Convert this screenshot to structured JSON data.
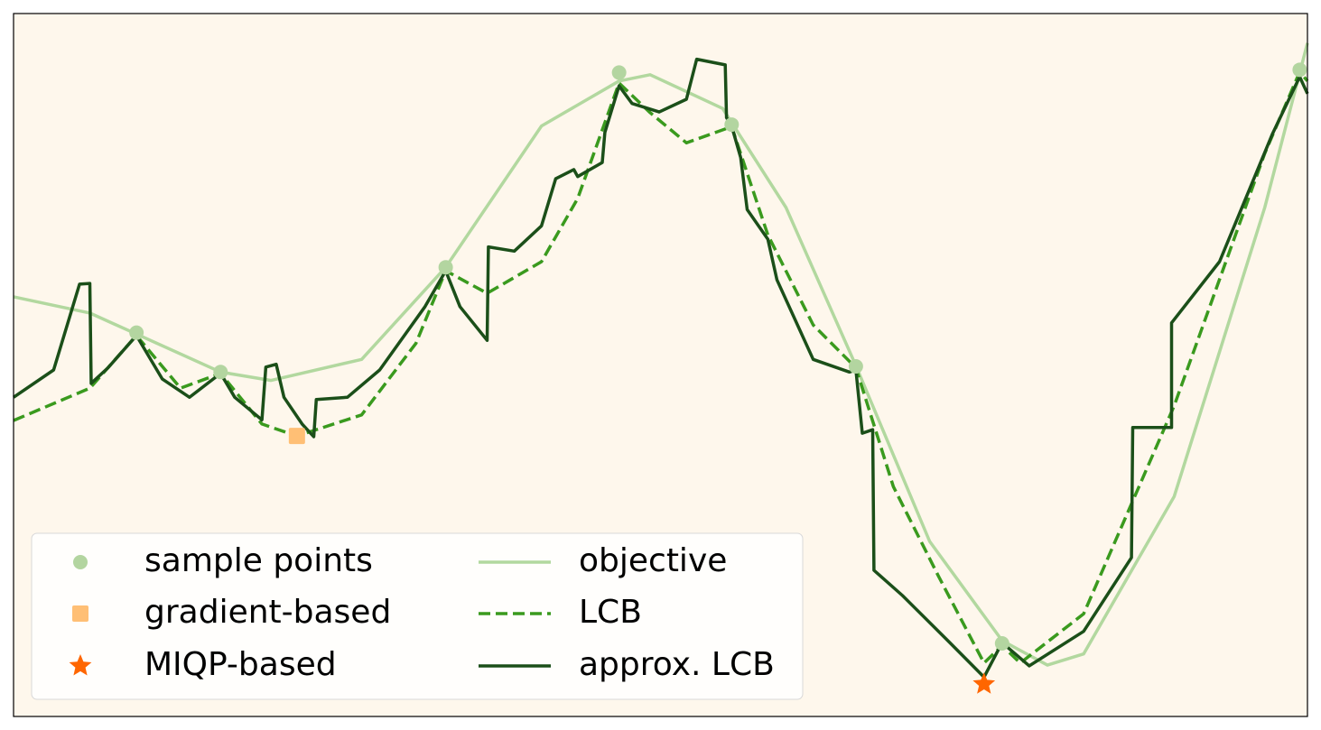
{
  "chart_data": {
    "type": "line",
    "xlim": [
      0,
      100
    ],
    "ylim": [
      0,
      100
    ],
    "background": "#fef7ec",
    "legend": "lower left",
    "series": [
      {
        "name": "sample points",
        "type": "scatter",
        "marker": "circle",
        "color": "#b3d5a0",
        "x": [
          9.5,
          16.0,
          33.4,
          46.8,
          55.5,
          65.1,
          76.4,
          99.4
        ],
        "values": [
          54.6,
          49.0,
          63.9,
          91.6,
          84.2,
          49.8,
          10.4,
          92.0
        ]
      },
      {
        "name": "gradient-based",
        "type": "scatter",
        "marker": "square",
        "color": "#ffbf75",
        "x": [
          21.9
        ],
        "values": [
          39.9
        ]
      },
      {
        "name": "MIQP-based",
        "type": "scatter",
        "marker": "star",
        "color": "#ff6600",
        "x": [
          75.0
        ],
        "values": [
          4.6
        ]
      },
      {
        "name": "objective",
        "type": "line",
        "dash": false,
        "color": "#b2d89f",
        "x": [
          0,
          5.9,
          9.5,
          16.0,
          19.9,
          26.9,
          33.4,
          40.8,
          46.8,
          49.2,
          54.8,
          59.7,
          65.1,
          70.8,
          76.4,
          79.9,
          82.7,
          89.7,
          96.7,
          100
        ],
        "values": [
          59.7,
          57.4,
          54.4,
          49.0,
          47.8,
          50.8,
          63.9,
          84.0,
          90.4,
          91.3,
          86.5,
          72.4,
          49.9,
          24.9,
          10.8,
          7.3,
          8.9,
          31.3,
          72.4,
          95.8
        ]
      },
      {
        "name": "LCB",
        "type": "line",
        "dash": true,
        "color": "#3a9a1e",
        "x": [
          0,
          5.9,
          9.5,
          12.9,
          16.0,
          19.2,
          21.9,
          26.9,
          31.1,
          33.4,
          36.6,
          40.8,
          43.6,
          46.8,
          49.2,
          52.0,
          55.5,
          58.3,
          61.8,
          65.1,
          68.0,
          71.5,
          75.0,
          76.4,
          77.8,
          82.7,
          89.7,
          96.7,
          99.4,
          100
        ],
        "values": [
          42.1,
          46.7,
          54.2,
          46.7,
          48.8,
          41.6,
          39.9,
          42.9,
          53.1,
          63.4,
          60.2,
          64.7,
          73.7,
          90.1,
          85.9,
          81.6,
          83.9,
          68.5,
          55.7,
          49.6,
          32.7,
          19.9,
          7.6,
          10.1,
          7.6,
          14.6,
          44.2,
          80.1,
          91.7,
          90.4
        ]
      },
      {
        "name": "approx. LCB",
        "type": "line",
        "dash": false,
        "color": "#1b4f19",
        "x": [
          0,
          3.1,
          5.1,
          5.9,
          6.0,
          7.3,
          9.5,
          11.5,
          13.6,
          16.0,
          17.1,
          19.2,
          19.5,
          20.3,
          20.9,
          22.3,
          23.2,
          23.4,
          25.8,
          28.3,
          31.8,
          33.4,
          34.5,
          36.6,
          36.7,
          38.7,
          40.8,
          41.9,
          43.3,
          43.6,
          45.5,
          45.7,
          46.8,
          47.8,
          49.9,
          52.0,
          52.8,
          55.0,
          55.1,
          55.5,
          56.2,
          56.7,
          58.3,
          59.0,
          61.8,
          64.6,
          65.1,
          65.6,
          66.4,
          66.5,
          68.7,
          72.2,
          75.0,
          76.4,
          78.5,
          82.7,
          86.4,
          86.5,
          89.5,
          89.5,
          93.2,
          97.3,
          99.4,
          100
        ],
        "values": [
          45.4,
          49.3,
          61.5,
          61.6,
          47.4,
          49.6,
          54.2,
          48.0,
          45.4,
          48.8,
          45.4,
          42.2,
          49.7,
          50.1,
          45.4,
          41.6,
          39.8,
          45.1,
          45.4,
          49.3,
          58.3,
          63.4,
          58.3,
          53.5,
          66.8,
          66.2,
          69.8,
          76.5,
          77.8,
          76.8,
          78.8,
          83.1,
          89.7,
          87.2,
          86.0,
          87.8,
          93.5,
          92.7,
          85.2,
          84.0,
          79.5,
          72.1,
          67.9,
          62.1,
          50.8,
          49.0,
          49.3,
          40.3,
          40.8,
          20.8,
          17.2,
          10.8,
          5.6,
          10.5,
          7.2,
          12.1,
          22.6,
          41.1,
          41.1,
          56.0,
          64.7,
          82.9,
          91.0,
          88.6
        ]
      }
    ]
  }
}
